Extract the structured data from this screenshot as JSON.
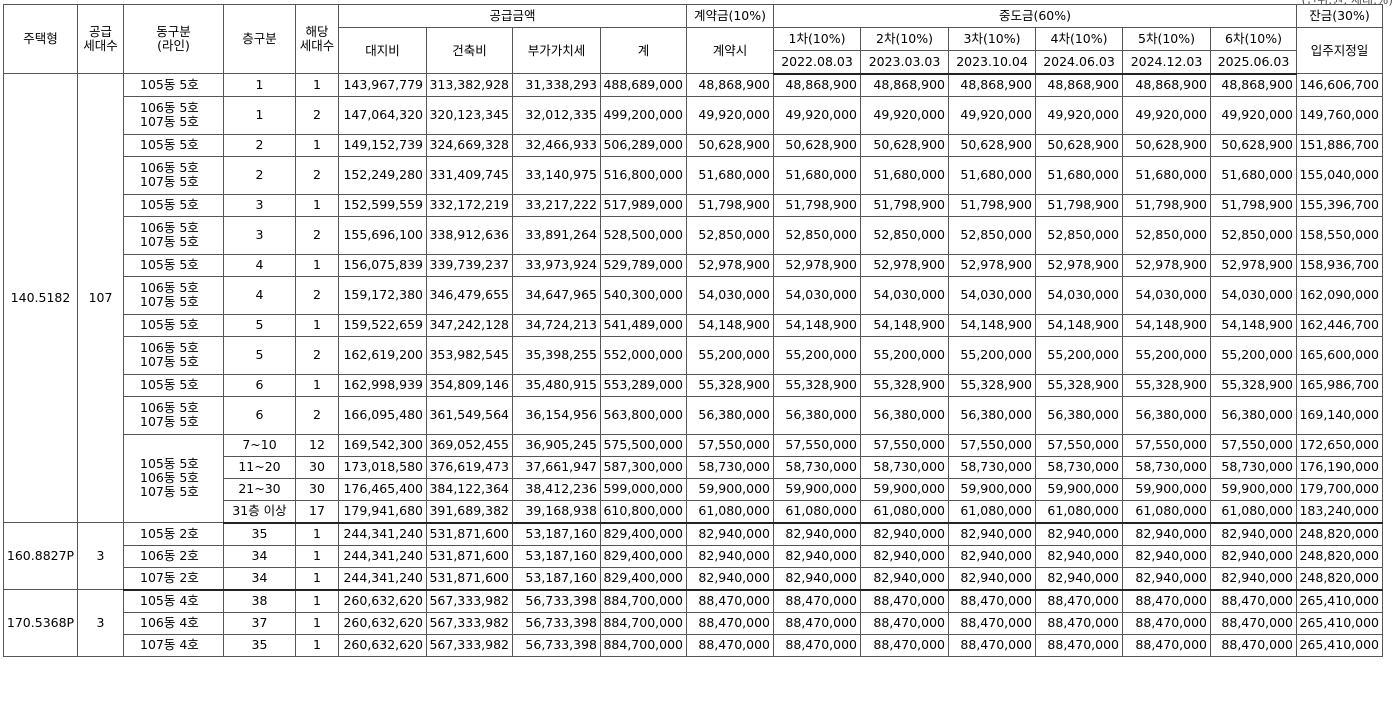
{
  "unit_note": "(단위:원, 세대,%)",
  "header": {
    "type": "주택형",
    "supply_count": [
      "공급",
      "세대수"
    ],
    "dong_line": [
      "동구분",
      "(라인)"
    ],
    "floor": "층구분",
    "units": [
      "해당",
      "세대수"
    ],
    "supply_price": "공급금액",
    "land": "대지비",
    "building": "건축비",
    "vat": "부가가치세",
    "total": "계",
    "deposit": "계약금(10%)",
    "deposit_sub": "계약시",
    "middle": "중도금(60%)",
    "installments": [
      {
        "label": "1차(10%)",
        "date": "2022.08.03"
      },
      {
        "label": "2차(10%)",
        "date": "2023.03.03"
      },
      {
        "label": "3차(10%)",
        "date": "2023.10.04"
      },
      {
        "label": "4차(10%)",
        "date": "2024.06.03"
      },
      {
        "label": "5차(10%)",
        "date": "2024.12.03"
      },
      {
        "label": "6차(10%)",
        "date": "2025.06.03"
      }
    ],
    "balance": "잔금(30%)",
    "balance_sub": "입주지정일"
  },
  "groups": [
    {
      "type": "140.5182",
      "count": "107",
      "rows": [
        {
          "dong": [
            "105동 5호"
          ],
          "floor": "1",
          "units": "1",
          "land": "143,967,779",
          "building": "313,382,928",
          "vat": "31,338,293",
          "total": "488,689,000",
          "deposit": "48,868,900",
          "mid": "48,868,900",
          "balance": "146,606,700"
        },
        {
          "dong": [
            "106동 5호",
            "107동 5호"
          ],
          "floor": "1",
          "units": "2",
          "land": "147,064,320",
          "building": "320,123,345",
          "vat": "32,012,335",
          "total": "499,200,000",
          "deposit": "49,920,000",
          "mid": "49,920,000",
          "balance": "149,760,000"
        },
        {
          "dong": [
            "105동 5호"
          ],
          "floor": "2",
          "units": "1",
          "land": "149,152,739",
          "building": "324,669,328",
          "vat": "32,466,933",
          "total": "506,289,000",
          "deposit": "50,628,900",
          "mid": "50,628,900",
          "balance": "151,886,700"
        },
        {
          "dong": [
            "106동 5호",
            "107동 5호"
          ],
          "floor": "2",
          "units": "2",
          "land": "152,249,280",
          "building": "331,409,745",
          "vat": "33,140,975",
          "total": "516,800,000",
          "deposit": "51,680,000",
          "mid": "51,680,000",
          "balance": "155,040,000"
        },
        {
          "dong": [
            "105동 5호"
          ],
          "floor": "3",
          "units": "1",
          "land": "152,599,559",
          "building": "332,172,219",
          "vat": "33,217,222",
          "total": "517,989,000",
          "deposit": "51,798,900",
          "mid": "51,798,900",
          "balance": "155,396,700"
        },
        {
          "dong": [
            "106동 5호",
            "107동 5호"
          ],
          "floor": "3",
          "units": "2",
          "land": "155,696,100",
          "building": "338,912,636",
          "vat": "33,891,264",
          "total": "528,500,000",
          "deposit": "52,850,000",
          "mid": "52,850,000",
          "balance": "158,550,000"
        },
        {
          "dong": [
            "105동 5호"
          ],
          "floor": "4",
          "units": "1",
          "land": "156,075,839",
          "building": "339,739,237",
          "vat": "33,973,924",
          "total": "529,789,000",
          "deposit": "52,978,900",
          "mid": "52,978,900",
          "balance": "158,936,700"
        },
        {
          "dong": [
            "106동 5호",
            "107동 5호"
          ],
          "floor": "4",
          "units": "2",
          "land": "159,172,380",
          "building": "346,479,655",
          "vat": "34,647,965",
          "total": "540,300,000",
          "deposit": "54,030,000",
          "mid": "54,030,000",
          "balance": "162,090,000"
        },
        {
          "dong": [
            "105동 5호"
          ],
          "floor": "5",
          "units": "1",
          "land": "159,522,659",
          "building": "347,242,128",
          "vat": "34,724,213",
          "total": "541,489,000",
          "deposit": "54,148,900",
          "mid": "54,148,900",
          "balance": "162,446,700"
        },
        {
          "dong": [
            "106동 5호",
            "107동 5호"
          ],
          "floor": "5",
          "units": "2",
          "land": "162,619,200",
          "building": "353,982,545",
          "vat": "35,398,255",
          "total": "552,000,000",
          "deposit": "55,200,000",
          "mid": "55,200,000",
          "balance": "165,600,000"
        },
        {
          "dong": [
            "105동 5호"
          ],
          "floor": "6",
          "units": "1",
          "land": "162,998,939",
          "building": "354,809,146",
          "vat": "35,480,915",
          "total": "553,289,000",
          "deposit": "55,328,900",
          "mid": "55,328,900",
          "balance": "165,986,700"
        },
        {
          "dong": [
            "106동 5호",
            "107동 5호"
          ],
          "floor": "6",
          "units": "2",
          "land": "166,095,480",
          "building": "361,549,564",
          "vat": "36,154,956",
          "total": "563,800,000",
          "deposit": "56,380,000",
          "mid": "56,380,000",
          "balance": "169,140,000"
        },
        {
          "dong": [
            "105동 5호",
            "106동 5호",
            "107동 5호"
          ],
          "dong_span": 4,
          "floor": "7~10",
          "units": "12",
          "land": "169,542,300",
          "building": "369,052,455",
          "vat": "36,905,245",
          "total": "575,500,000",
          "deposit": "57,550,000",
          "mid": "57,550,000",
          "balance": "172,650,000"
        },
        {
          "floor": "11~20",
          "units": "30",
          "land": "173,018,580",
          "building": "376,619,473",
          "vat": "37,661,947",
          "total": "587,300,000",
          "deposit": "58,730,000",
          "mid": "58,730,000",
          "balance": "176,190,000"
        },
        {
          "floor": "21~30",
          "units": "30",
          "land": "176,465,400",
          "building": "384,122,364",
          "vat": "38,412,236",
          "total": "599,000,000",
          "deposit": "59,900,000",
          "mid": "59,900,000",
          "balance": "179,700,000"
        },
        {
          "floor": "31층 이상",
          "units": "17",
          "land": "179,941,680",
          "building": "391,689,382",
          "vat": "39,168,938",
          "total": "610,800,000",
          "deposit": "61,080,000",
          "mid": "61,080,000",
          "balance": "183,240,000"
        }
      ]
    },
    {
      "type": "160.8827P",
      "count": "3",
      "rows": [
        {
          "dong": [
            "105동 2호"
          ],
          "floor": "35",
          "units": "1",
          "land": "244,341,240",
          "building": "531,871,600",
          "vat": "53,187,160",
          "total": "829,400,000",
          "deposit": "82,940,000",
          "mid": "82,940,000",
          "balance": "248,820,000"
        },
        {
          "dong": [
            "106동 2호"
          ],
          "floor": "34",
          "units": "1",
          "land": "244,341,240",
          "building": "531,871,600",
          "vat": "53,187,160",
          "total": "829,400,000",
          "deposit": "82,940,000",
          "mid": "82,940,000",
          "balance": "248,820,000"
        },
        {
          "dong": [
            "107동 2호"
          ],
          "floor": "34",
          "units": "1",
          "land": "244,341,240",
          "building": "531,871,600",
          "vat": "53,187,160",
          "total": "829,400,000",
          "deposit": "82,940,000",
          "mid": "82,940,000",
          "balance": "248,820,000"
        }
      ]
    },
    {
      "type": "170.5368P",
      "count": "3",
      "rows": [
        {
          "dong": [
            "105동 4호"
          ],
          "floor": "38",
          "units": "1",
          "land": "260,632,620",
          "building": "567,333,982",
          "vat": "56,733,398",
          "total": "884,700,000",
          "deposit": "88,470,000",
          "mid": "88,470,000",
          "balance": "265,410,000"
        },
        {
          "dong": [
            "106동 4호"
          ],
          "floor": "37",
          "units": "1",
          "land": "260,632,620",
          "building": "567,333,982",
          "vat": "56,733,398",
          "total": "884,700,000",
          "deposit": "88,470,000",
          "mid": "88,470,000",
          "balance": "265,410,000"
        },
        {
          "dong": [
            "107동 4호"
          ],
          "floor": "35",
          "units": "1",
          "land": "260,632,620",
          "building": "567,333,982",
          "vat": "56,733,398",
          "total": "884,700,000",
          "deposit": "88,470,000",
          "mid": "88,470,000",
          "balance": "265,410,000"
        }
      ]
    }
  ]
}
